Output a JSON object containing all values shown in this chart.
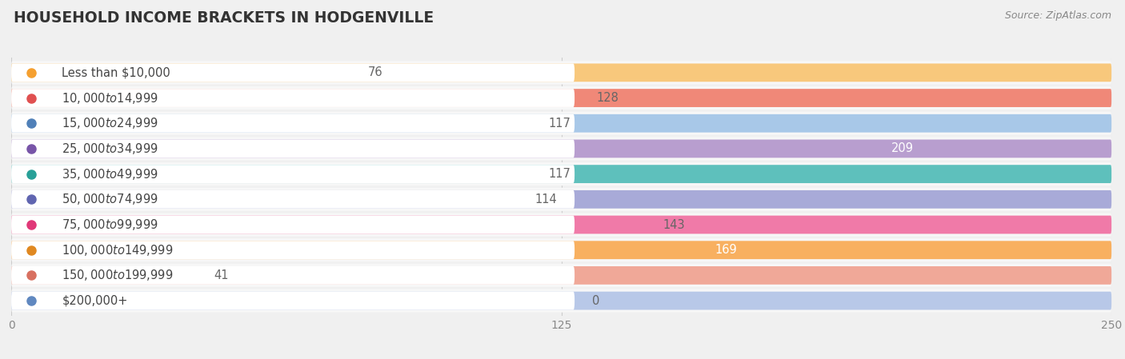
{
  "title": "HOUSEHOLD INCOME BRACKETS IN HODGENVILLE",
  "source": "Source: ZipAtlas.com",
  "categories": [
    "Less than $10,000",
    "$10,000 to $14,999",
    "$15,000 to $24,999",
    "$25,000 to $34,999",
    "$35,000 to $49,999",
    "$50,000 to $74,999",
    "$75,000 to $99,999",
    "$100,000 to $149,999",
    "$150,000 to $199,999",
    "$200,000+"
  ],
  "values": [
    76,
    128,
    117,
    209,
    117,
    114,
    143,
    169,
    41,
    0
  ],
  "bar_colors": [
    "#f8c87c",
    "#f08878",
    "#a8c8e8",
    "#b89ecf",
    "#5ec0bc",
    "#a8aad8",
    "#f07aa8",
    "#f8b060",
    "#f0a898",
    "#b8c8e8"
  ],
  "dot_colors": [
    "#f5a030",
    "#e05050",
    "#5080b8",
    "#7855a8",
    "#28a098",
    "#6065b0",
    "#e03878",
    "#e08820",
    "#d87060",
    "#6088c0"
  ],
  "xlim": [
    0,
    250
  ],
  "xticks": [
    0,
    125,
    250
  ],
  "background_color": "#f0f0f0",
  "row_bg_color": "#f7f7f7",
  "bar_pill_color": "#ffffff",
  "label_fontsize": 10.5,
  "value_fontsize": 10.5,
  "title_fontsize": 13.5,
  "n_bars": 10
}
